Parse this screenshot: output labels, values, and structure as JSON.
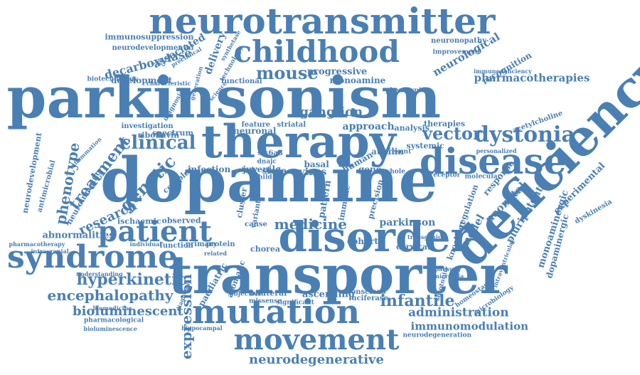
{
  "color": "#4a7fb3",
  "words": [
    {
      "text": "neurotransmitter",
      "weight": 10
    },
    {
      "text": "childhood",
      "weight": 8
    },
    {
      "text": "parkinsonism",
      "weight": 10
    },
    {
      "text": "therapy",
      "weight": 9
    },
    {
      "text": "disease",
      "weight": 8
    },
    {
      "text": "dopamine",
      "weight": 10
    },
    {
      "text": "deficiency",
      "weight": 9
    },
    {
      "text": "disorder",
      "weight": 9
    },
    {
      "text": "transporter",
      "weight": 10
    },
    {
      "text": "syndrome",
      "weight": 8
    },
    {
      "text": "mutation",
      "weight": 8
    },
    {
      "text": "movement",
      "weight": 7
    },
    {
      "text": "patient",
      "weight": 7
    },
    {
      "text": "dystonia",
      "weight": 6
    },
    {
      "text": "mouse",
      "weight": 5
    },
    {
      "text": "vector",
      "weight": 5
    },
    {
      "text": "clinical",
      "weight": 5
    },
    {
      "text": "genetic",
      "weight": 5
    },
    {
      "text": "treatment",
      "weight": 5
    },
    {
      "text": "phenotype",
      "weight": 4
    },
    {
      "text": "hyperkinetic",
      "weight": 4
    },
    {
      "text": "encephalopathy",
      "weight": 4
    },
    {
      "text": "bioluminescent",
      "weight": 4
    },
    {
      "text": "expression",
      "weight": 4
    },
    {
      "text": "infantile",
      "weight": 4
    },
    {
      "text": "neurodegenerative",
      "weight": 3
    },
    {
      "text": "administration",
      "weight": 3
    },
    {
      "text": "immunomodulation",
      "weight": 3
    },
    {
      "text": "medicine",
      "weight": 4
    },
    {
      "text": "research",
      "weight": 4
    },
    {
      "text": "pharmacotherapies",
      "weight": 3
    },
    {
      "text": "neurological",
      "weight": 3
    },
    {
      "text": "decarboxylase",
      "weight": 3
    },
    {
      "text": "associated",
      "weight": 3
    },
    {
      "text": "delivery",
      "weight": 3
    },
    {
      "text": "monoaminergic",
      "weight": 3
    },
    {
      "text": "progressive",
      "weight": 3
    },
    {
      "text": "experimental",
      "weight": 3
    },
    {
      "text": "neonatal",
      "weight": 3
    },
    {
      "text": "pluripotent",
      "weight": 3
    },
    {
      "text": "dopaminergic",
      "weight": 3
    },
    {
      "text": "ganglion",
      "weight": 3
    },
    {
      "text": "approach",
      "weight": 3
    },
    {
      "text": "parkinson",
      "weight": 3
    },
    {
      "text": "cohort",
      "weight": 3
    },
    {
      "text": "ascending",
      "weight": 3
    },
    {
      "text": "abnormalities",
      "weight": 2
    },
    {
      "text": "ischaemic",
      "weight": 2
    },
    {
      "text": "observed",
      "weight": 2
    },
    {
      "text": "development",
      "weight": 2
    },
    {
      "text": "neuronal",
      "weight": 2
    },
    {
      "text": "juvenile",
      "weight": 2
    },
    {
      "text": "infection",
      "weight": 2
    },
    {
      "text": "virus",
      "weight": 2
    },
    {
      "text": "model",
      "weight": 2
    },
    {
      "text": "response",
      "weight": 2
    },
    {
      "text": "recognition",
      "weight": 2
    },
    {
      "text": "neuronopathy",
      "weight": 2
    },
    {
      "text": "immunosuppression",
      "weight": 2
    },
    {
      "text": "neurodevelopmental",
      "weight": 2
    },
    {
      "text": "biotechnology",
      "weight": 2
    },
    {
      "text": "investigation",
      "weight": 2
    },
    {
      "text": "riboflavin",
      "weight": 2
    },
    {
      "text": "spectrum",
      "weight": 2
    },
    {
      "text": "neurodevelopment",
      "weight": 2
    },
    {
      "text": "antimicrobial",
      "weight": 2
    },
    {
      "text": "neuroimaging",
      "weight": 2
    },
    {
      "text": "pharmacotherapy",
      "weight": 1
    },
    {
      "text": "intracranial",
      "weight": 1
    },
    {
      "text": "individual",
      "weight": 1
    },
    {
      "text": "function",
      "weight": 2
    },
    {
      "text": "primary",
      "weight": 2
    },
    {
      "text": "protein",
      "weight": 2
    },
    {
      "text": "related",
      "weight": 1
    },
    {
      "text": "chorea",
      "weight": 2
    },
    {
      "text": "functional",
      "weight": 2
    },
    {
      "text": "analysis",
      "weight": 2
    },
    {
      "text": "therapies",
      "weight": 2
    },
    {
      "text": "systemic",
      "weight": 2
    },
    {
      "text": "auxilin",
      "weight": 2
    },
    {
      "text": "feature",
      "weight": 2
    },
    {
      "text": "striatal",
      "weight": 2
    },
    {
      "text": "complex",
      "weight": 2
    },
    {
      "text": "slc6a3",
      "weight": 2
    },
    {
      "text": "slc6a",
      "weight": 2
    },
    {
      "text": "basal",
      "weight": 2
    },
    {
      "text": "understanding",
      "weight": 1
    },
    {
      "text": "biomedicine",
      "weight": 1
    },
    {
      "text": "pharmacological",
      "weight": 2
    },
    {
      "text": "bioluminescence",
      "weight": 1
    },
    {
      "text": "hippocampal",
      "weight": 1
    },
    {
      "text": "paediatric",
      "weight": 2
    },
    {
      "text": "aromatic",
      "weight": 2
    },
    {
      "text": "objective",
      "weight": 1
    },
    {
      "text": "bilateral",
      "weight": 2
    },
    {
      "text": "missense",
      "weight": 1
    },
    {
      "text": "significant",
      "weight": 1
    },
    {
      "text": "conscious",
      "weight": 1
    },
    {
      "text": "luciferase",
      "weight": 1
    },
    {
      "text": "cervical",
      "weight": 2
    },
    {
      "text": "neurodegeneration",
      "weight": 1
    },
    {
      "text": "homeostasis",
      "weight": 1
    },
    {
      "text": "microbiology",
      "weight": 1
    },
    {
      "text": "serotonin",
      "weight": 1
    },
    {
      "text": "monoamine",
      "weight": 2
    },
    {
      "text": "immunodeficiency",
      "weight": 1
    },
    {
      "text": "acetylcholine",
      "weight": 1
    },
    {
      "text": "technology",
      "weight": 1
    },
    {
      "text": "generation",
      "weight": 1
    },
    {
      "text": "diagnosis",
      "weight": 1
    },
    {
      "text": "science",
      "weight": 1
    },
    {
      "text": "synthetase",
      "weight": 1
    },
    {
      "text": "personalized",
      "weight": 1
    },
    {
      "text": "intraventricular",
      "weight": 1
    },
    {
      "text": "dyskinesia",
      "weight": 1
    },
    {
      "text": "pattern",
      "weight": 2
    },
    {
      "text": "precision",
      "weight": 1
    },
    {
      "text": "immune",
      "weight": 1
    },
    {
      "text": "human",
      "weight": 2
    },
    {
      "text": "gene",
      "weight": 2
    },
    {
      "text": "cluster",
      "weight": 1
    },
    {
      "text": "variant",
      "weight": 1
    },
    {
      "text": "cause",
      "weight": 1
    },
    {
      "text": "dnajc",
      "weight": 1
    },
    {
      "text": "child",
      "weight": 1
    },
    {
      "text": "study",
      "weight": 1
    },
    {
      "text": "transgenic",
      "weight": 1
    },
    {
      "text": "phenotypic",
      "weight": 1
    },
    {
      "text": "pathway",
      "weight": 1
    },
    {
      "text": "microglia",
      "weight": 1
    },
    {
      "text": "improvement",
      "weight": 1
    },
    {
      "text": "knockout",
      "weight": 1
    },
    {
      "text": "molecular",
      "weight": 1
    },
    {
      "text": "receptor",
      "weight": 1
    },
    {
      "text": "regulation",
      "weight": 1
    },
    {
      "text": "present",
      "weight": 1
    },
    {
      "text": "whole",
      "weight": 1
    },
    {
      "text": "diagnostic",
      "weight": 1
    },
    {
      "text": "characteristic",
      "weight": 1
    },
    {
      "text": "preclinical",
      "weight": 1
    },
    {
      "text": "inflammation",
      "weight": 1
    }
  ]
}
